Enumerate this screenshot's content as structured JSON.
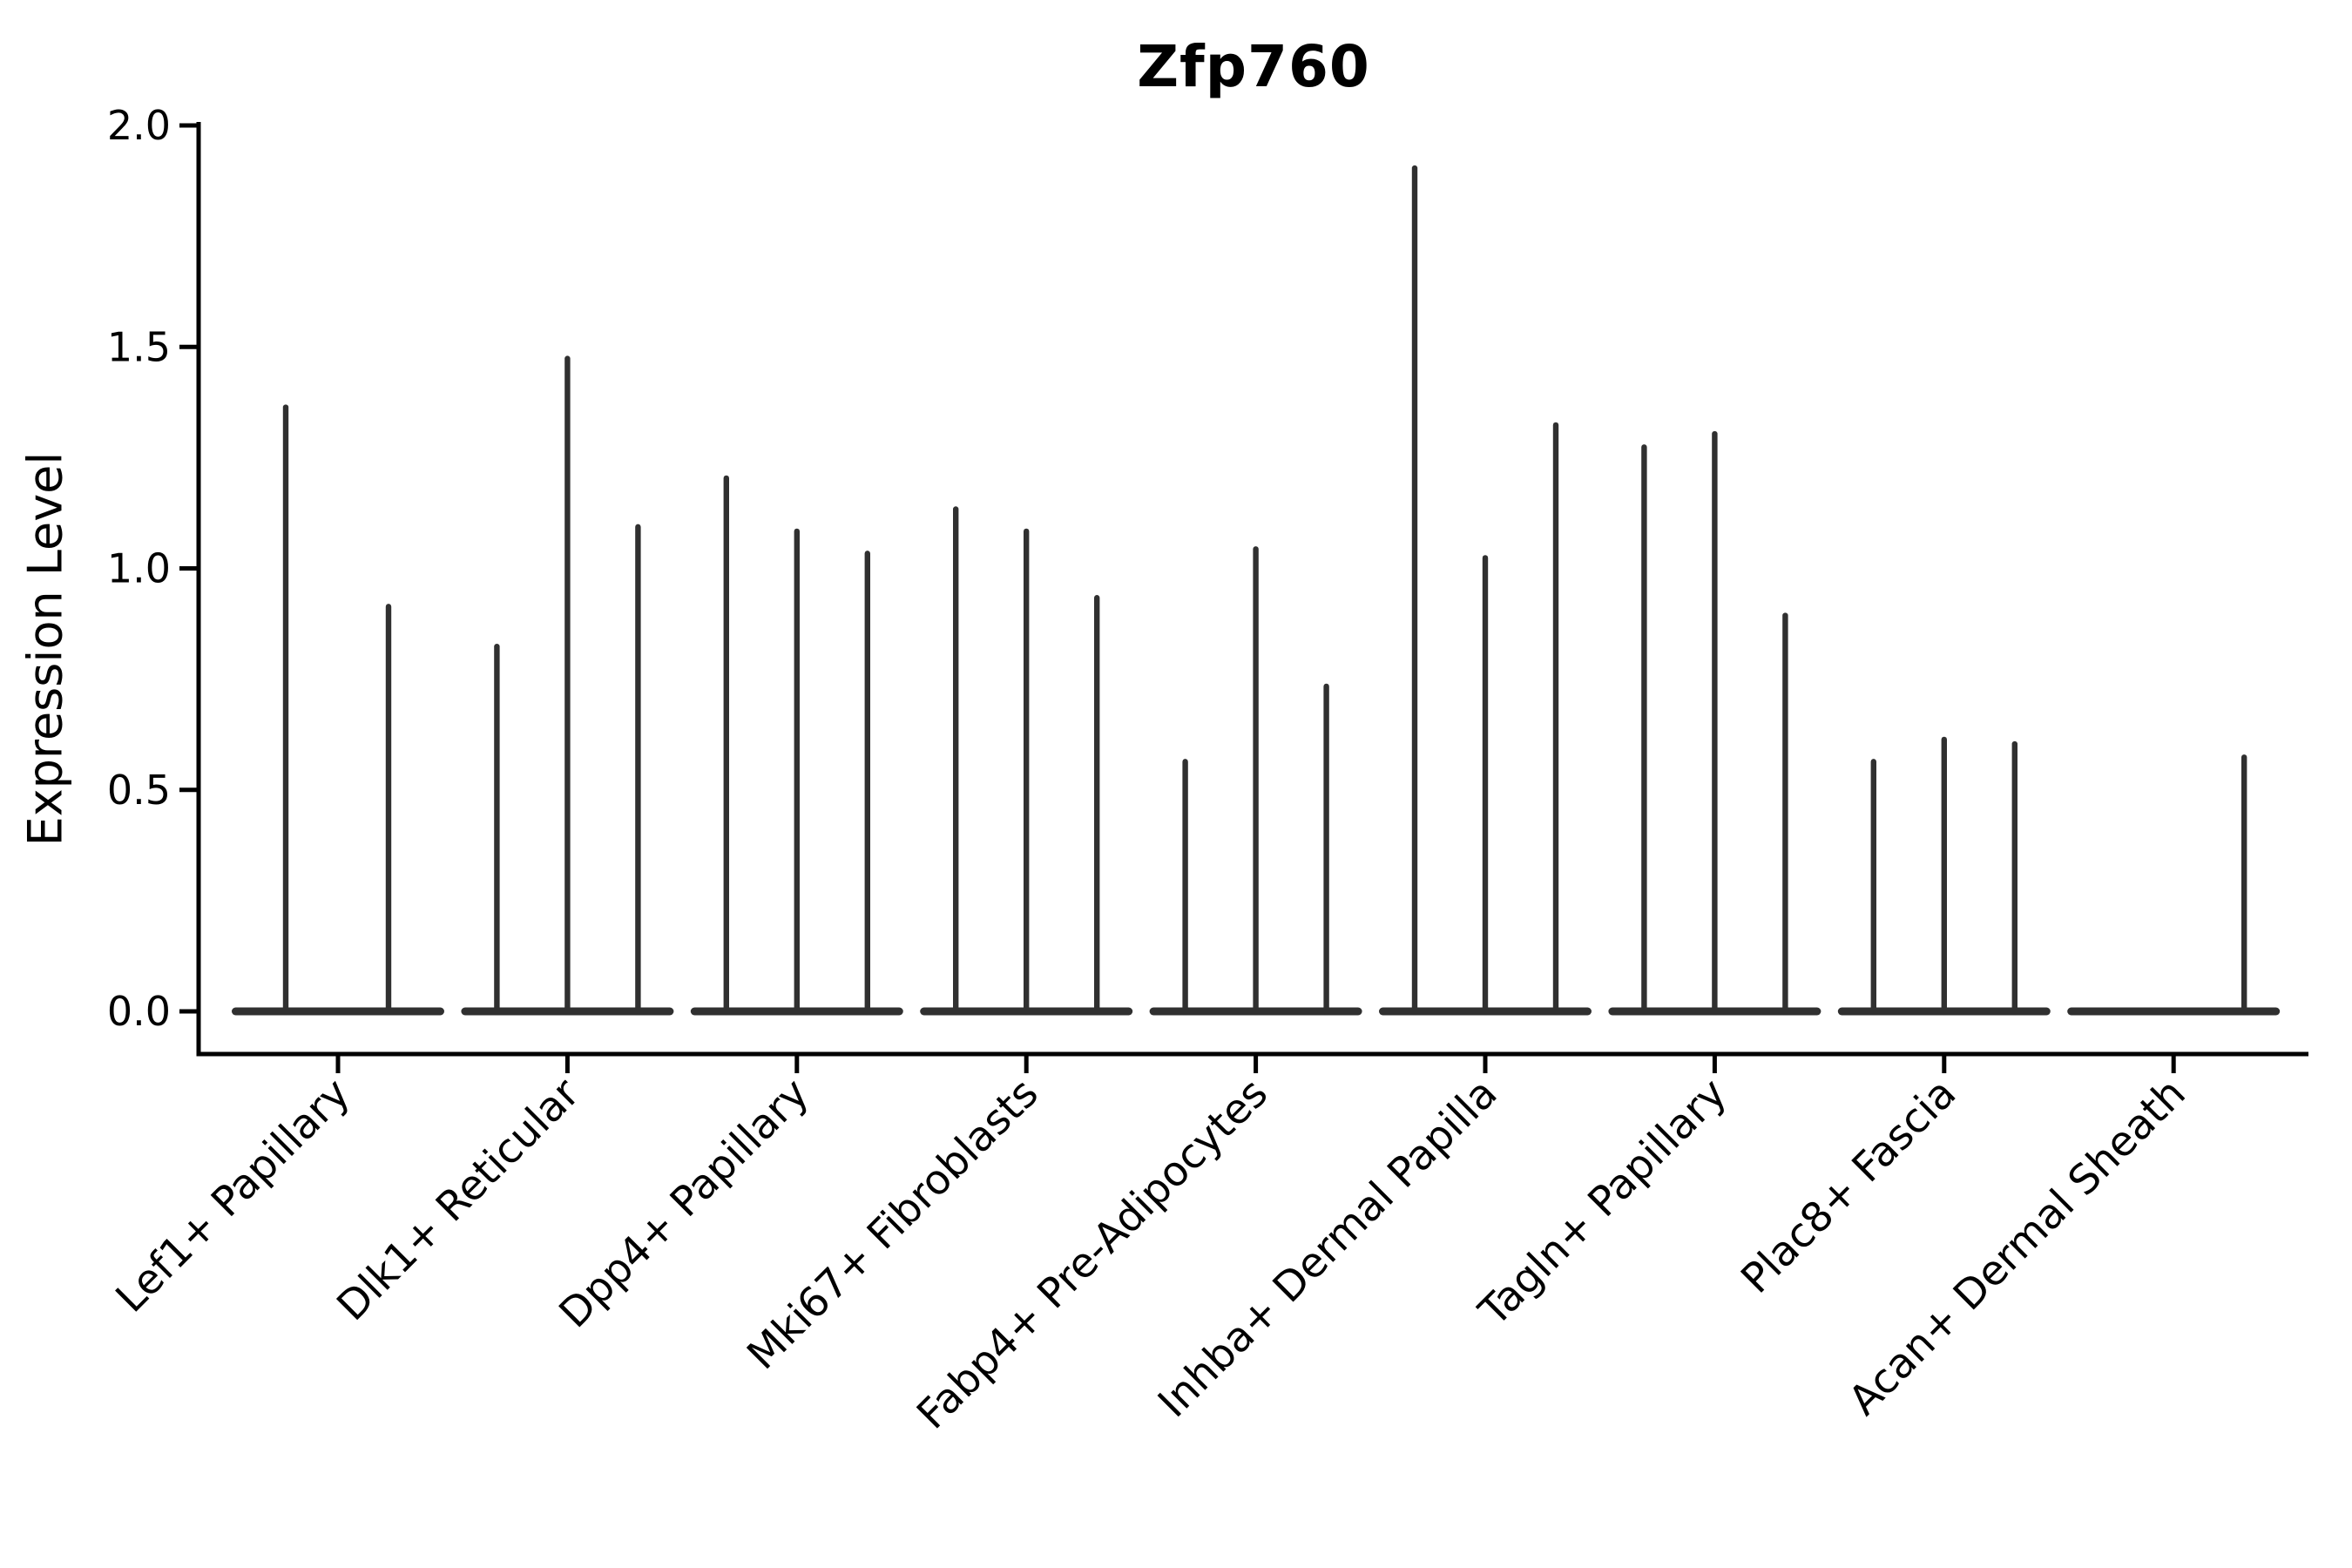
{
  "title": "Zfp760",
  "colors": {
    "axis": "#000000",
    "text": "#000000",
    "violin": "#303030",
    "background": "#ffffff"
  },
  "chart_data": {
    "type": "violin",
    "title": "Zfp760",
    "xlabel": "",
    "ylabel": "Expression Level",
    "ylim": [
      -0.1,
      2.0
    ],
    "yticks": [
      "0.0",
      "0.5",
      "1.0",
      "1.5",
      "2.0"
    ],
    "ytick_values": [
      0.0,
      0.5,
      1.0,
      1.5,
      2.0
    ],
    "grid": false,
    "legend_position": "none",
    "categories": [
      "Lef1+ Papillary",
      "Dlk1+ Reticular",
      "Dpp4+ Papillary",
      "Mki67+ Fibroblasts",
      "Fabp4+ Pre-Adipocytes",
      "Inhba+ Dermal Papilla",
      "Tagln+ Papillary",
      "Plac8+ Fascia",
      "Acan+ Dermal Sheath"
    ],
    "groups": [
      {
        "category": "Lef1+ Papillary",
        "violins": [
          {
            "offset": -60,
            "max": 1.37
          },
          {
            "offset": 58,
            "max": 0.92
          }
        ]
      },
      {
        "category": "Dlk1+ Reticular",
        "violins": [
          {
            "offset": -81,
            "max": 0.83
          },
          {
            "offset": 0,
            "max": 1.48
          },
          {
            "offset": 81,
            "max": 1.1
          }
        ]
      },
      {
        "category": "Dpp4+ Papillary",
        "violins": [
          {
            "offset": -81,
            "max": 1.21
          },
          {
            "offset": 0,
            "max": 1.09
          },
          {
            "offset": 81,
            "max": 1.04
          }
        ]
      },
      {
        "category": "Mki67+ Fibroblasts",
        "violins": [
          {
            "offset": -81,
            "max": 1.14
          },
          {
            "offset": 0,
            "max": 1.09
          },
          {
            "offset": 81,
            "max": 0.94
          }
        ]
      },
      {
        "category": "Fabp4+ Pre-Adipocytes",
        "violins": [
          {
            "offset": -81,
            "max": 0.57
          },
          {
            "offset": 0,
            "max": 1.05
          },
          {
            "offset": 81,
            "max": 0.74
          }
        ]
      },
      {
        "category": "Inhba+ Dermal Papilla",
        "violins": [
          {
            "offset": -81,
            "max": 1.91
          },
          {
            "offset": 0,
            "max": 1.03
          },
          {
            "offset": 81,
            "max": 1.33
          }
        ]
      },
      {
        "category": "Tagln+ Papillary",
        "violins": [
          {
            "offset": -81,
            "max": 1.28
          },
          {
            "offset": 0,
            "max": 1.31
          },
          {
            "offset": 81,
            "max": 0.9
          }
        ]
      },
      {
        "category": "Plac8+ Fascia",
        "violins": [
          {
            "offset": -81,
            "max": 0.57
          },
          {
            "offset": 0,
            "max": 0.62
          },
          {
            "offset": 81,
            "max": 0.61
          }
        ]
      },
      {
        "category": "Acan+ Dermal Sheath",
        "violins": [
          {
            "offset": -81,
            "max": 0
          },
          {
            "offset": 0,
            "max": 0
          },
          {
            "offset": 81,
            "max": 0.58
          }
        ]
      }
    ]
  }
}
